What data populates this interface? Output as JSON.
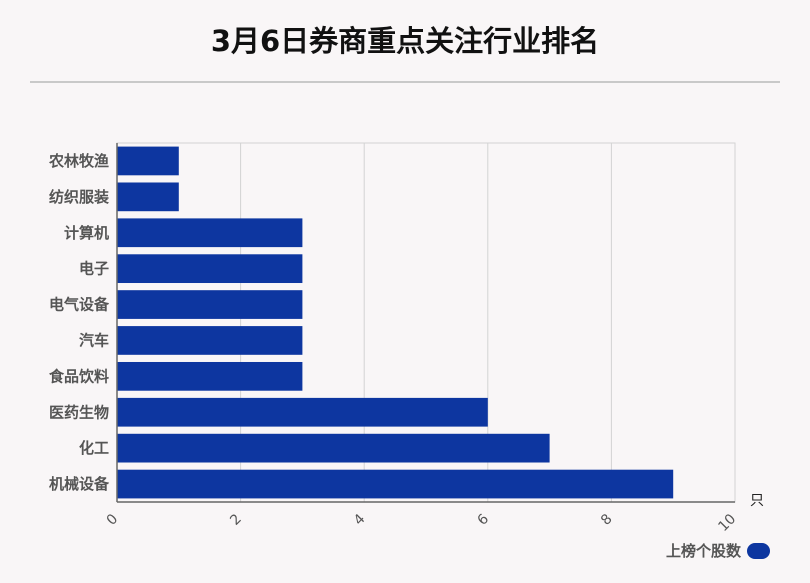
{
  "title": "3月6日券商重点关注行业排名",
  "colors": {
    "bar": "#0d36a0",
    "grid": "#d3d3d3",
    "axis": "#666666",
    "label": "#555555"
  },
  "legend": {
    "label": "上榜个股数"
  },
  "chart_data": {
    "type": "bar",
    "orientation": "horizontal",
    "title": "3月6日券商重点关注行业排名",
    "xlabel": "只",
    "ylabel": "",
    "xlim": [
      0,
      10
    ],
    "ticks": [
      0,
      2,
      4,
      6,
      8,
      10
    ],
    "grid": true,
    "legend_position": "bottom-right",
    "categories": [
      "农林牧渔",
      "纺织服装",
      "计算机",
      "电子",
      "电气设备",
      "汽车",
      "食品饮料",
      "医药生物",
      "化工",
      "机械设备"
    ],
    "series": [
      {
        "name": "上榜个股数",
        "values": [
          1,
          1,
          3,
          3,
          3,
          3,
          3,
          6,
          7,
          9
        ]
      }
    ]
  }
}
